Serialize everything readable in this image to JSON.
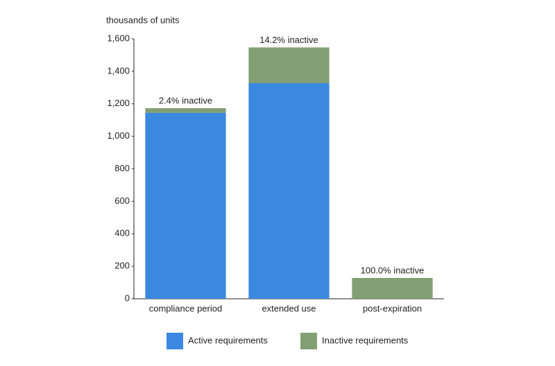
{
  "chart_data": {
    "type": "stacked_bar",
    "y_label": "thousands of units",
    "categories": [
      "compliance period",
      "extended use",
      "post-expiration"
    ],
    "series": [
      {
        "name": "Active requirements",
        "color": "#3b88e0",
        "values": [
          1145,
          1327,
          0
        ]
      },
      {
        "name": "Inactive requirements",
        "color": "#82a073",
        "values": [
          28,
          220,
          128
        ]
      }
    ],
    "annotations": [
      "2.4% inactive",
      "14.2% inactive",
      "100.0% inactive"
    ],
    "ylim": [
      0,
      1600
    ],
    "yticks": [
      0,
      200,
      400,
      600,
      800,
      {
        "value": 1000,
        "label": "1,000"
      },
      {
        "value": 1200,
        "label": "1,200"
      },
      {
        "value": 1400,
        "label": "1,400"
      },
      {
        "value": 1600,
        "label": "1,600"
      }
    ],
    "legend": "bottom"
  }
}
